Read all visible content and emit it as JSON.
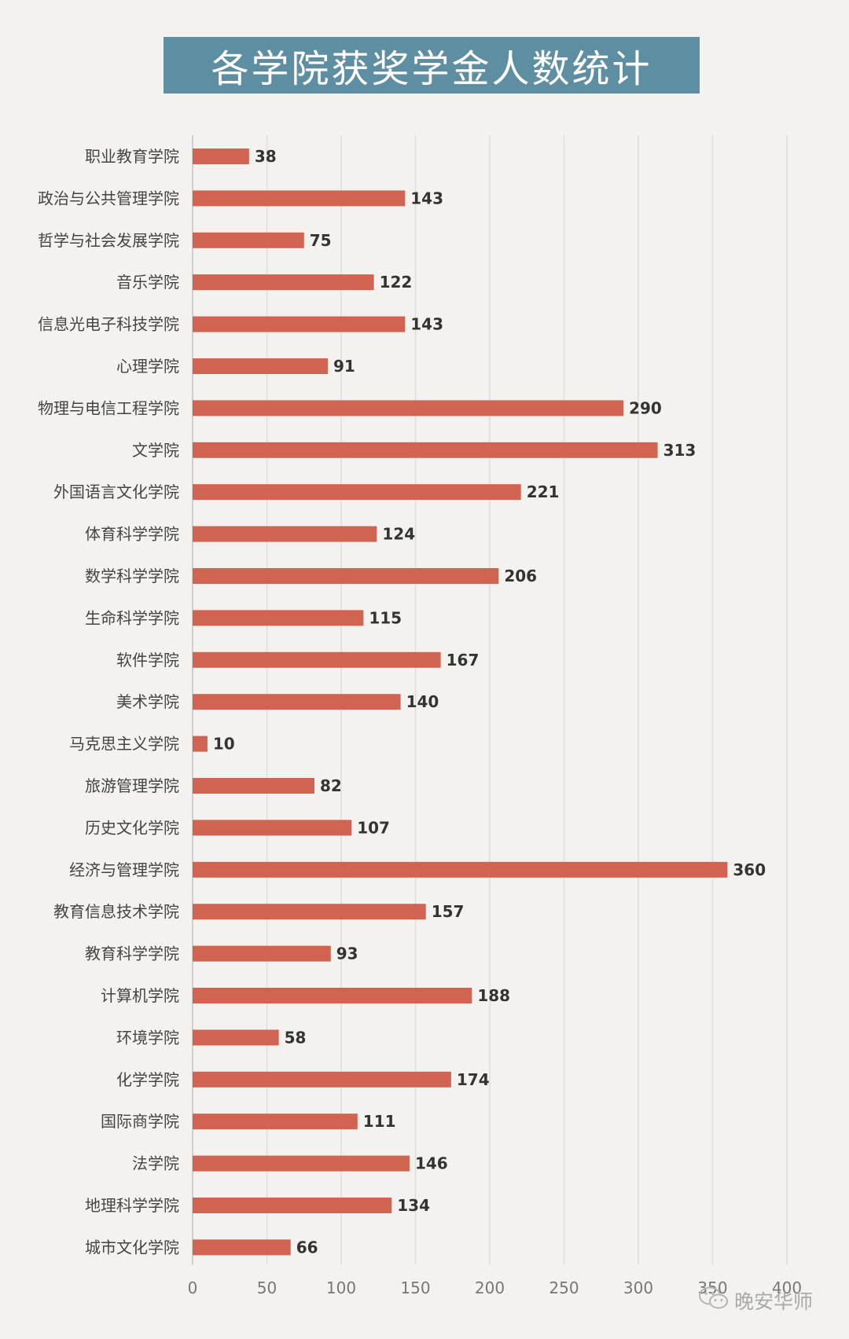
{
  "chart_data": {
    "type": "bar",
    "orientation": "horizontal",
    "title": "各学院获奖学金人数统计",
    "categories": [
      "职业教育学院",
      "政治与公共管理学院",
      "哲学与社会发展学院",
      "音乐学院",
      "信息光电子科技学院",
      "心理学院",
      "物理与电信工程学院",
      "文学院",
      "外国语言文化学院",
      "体育科学学院",
      "数学科学学院",
      "生命科学学院",
      "软件学院",
      "美术学院",
      "马克思主义学院",
      "旅游管理学院",
      "历史文化学院",
      "经济与管理学院",
      "教育信息技术学院",
      "教育科学学院",
      "计算机学院",
      "环境学院",
      "化学学院",
      "国际商学院",
      "法学院",
      "地理科学学院",
      "城市文化学院"
    ],
    "values": [
      38,
      143,
      75,
      122,
      143,
      91,
      290,
      313,
      221,
      124,
      206,
      115,
      167,
      140,
      10,
      82,
      107,
      360,
      157,
      93,
      188,
      58,
      174,
      111,
      146,
      134,
      66
    ],
    "xlim": [
      0,
      400
    ],
    "xticks": [
      0,
      50,
      100,
      150,
      200,
      250,
      300,
      350,
      400
    ],
    "grid": true,
    "bar_color": "#d06450",
    "title_bg_color": "#5e8ea1"
  },
  "watermark": {
    "text": "晚安华师",
    "icon": "wechat-icon"
  }
}
